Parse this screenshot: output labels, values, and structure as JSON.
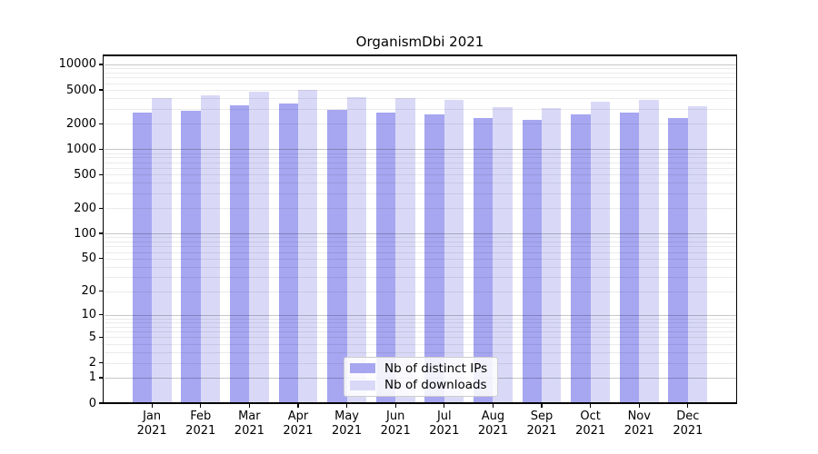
{
  "title": "OrganismDbi 2021",
  "colors": {
    "ips_bar": "#a6a6f1",
    "downloads_bar": "#d9d9f7",
    "grid_major": "#c8c8c8",
    "grid_minor": "#ececec",
    "axis": "#000000",
    "legend_border": "#cccccc",
    "background": "#ffffff"
  },
  "legend": {
    "items": [
      {
        "label": "Nb of distinct IPs",
        "series": "ips"
      },
      {
        "label": "Nb of downloads",
        "series": "downloads"
      }
    ]
  },
  "chart_data": {
    "type": "bar",
    "title": "OrganismDbi 2021",
    "categories": [
      "Jan",
      "Feb",
      "Mar",
      "Apr",
      "May",
      "Jun",
      "Jul",
      "Aug",
      "Sep",
      "Oct",
      "Nov",
      "Dec"
    ],
    "category_year": "2021",
    "series": [
      {
        "name": "Nb of distinct IPs",
        "color_key": "ips_bar",
        "values": [
          2720,
          2830,
          3270,
          3500,
          2880,
          2720,
          2540,
          2350,
          2210,
          2540,
          2720,
          2310
        ]
      },
      {
        "name": "Nb of downloads",
        "color_key": "downloads_bar",
        "values": [
          4010,
          4350,
          4800,
          4950,
          4060,
          3970,
          3770,
          3120,
          3020,
          3620,
          3840,
          3250
        ]
      }
    ],
    "yscale": "log1p",
    "ylim": [
      0,
      12800
    ],
    "y_ticks": [
      0,
      1,
      2,
      5,
      10,
      20,
      50,
      100,
      200,
      500,
      1000,
      2000,
      5000,
      10000
    ],
    "y_major_gridlines": [
      1,
      10,
      100,
      1000,
      10000
    ],
    "y_minor_gridlines": [
      2,
      3,
      4,
      5,
      6,
      7,
      8,
      9,
      20,
      30,
      40,
      50,
      60,
      70,
      80,
      90,
      200,
      300,
      400,
      500,
      600,
      700,
      800,
      900,
      2000,
      3000,
      4000,
      5000,
      6000,
      7000,
      8000,
      9000
    ],
    "grid": "horizontal",
    "legend_position": "lower-center-inside",
    "xlabel": "",
    "ylabel": ""
  }
}
